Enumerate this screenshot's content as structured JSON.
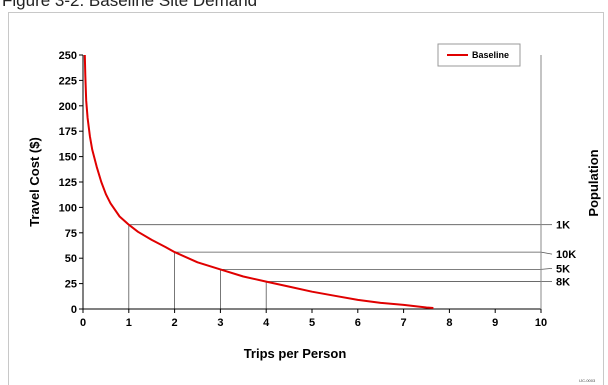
{
  "figure": {
    "caption": "Figure 3-2. Baseline Site Demand",
    "code": "IJC-0003"
  },
  "chart_data": {
    "type": "line",
    "xlabel": "Trips per Person",
    "ylabel": "Travel Cost ($)",
    "y2label": "Population",
    "xlim": [
      0,
      10
    ],
    "ylim": [
      0,
      250
    ],
    "x_ticks": [
      "0",
      "1",
      "2",
      "3",
      "4",
      "5",
      "6",
      "7",
      "8",
      "9",
      "10"
    ],
    "y_ticks": [
      "0",
      "25",
      "50",
      "75",
      "100",
      "125",
      "150",
      "175",
      "200",
      "225",
      "250"
    ],
    "legend_position": "top-right",
    "series": [
      {
        "name": "Baseline",
        "color": "#e00000",
        "x": [
          0.04,
          0.05,
          0.07,
          0.1,
          0.15,
          0.2,
          0.3,
          0.4,
          0.5,
          0.6,
          0.8,
          1.0,
          1.2,
          1.5,
          1.8,
          2.0,
          2.5,
          3.0,
          3.5,
          4.0,
          4.5,
          5.0,
          5.5,
          6.0,
          6.5,
          7.0,
          7.5,
          7.65
        ],
        "y": [
          250,
          230,
          205,
          188,
          170,
          157,
          140,
          125,
          113,
          104,
          91,
          83,
          76,
          68,
          61,
          56,
          46,
          39,
          32,
          27,
          22,
          17,
          13,
          9,
          6,
          4,
          1.5,
          1
        ]
      }
    ],
    "population_levels": [
      {
        "label": "1K",
        "x": 1,
        "y": 83,
        "label_y": 83
      },
      {
        "label": "10K",
        "x": 2,
        "y": 56,
        "label_y": 54
      },
      {
        "label": "5K",
        "x": 3,
        "y": 39,
        "label_y": 40
      },
      {
        "label": "8K",
        "x": 4,
        "y": 27,
        "label_y": 27
      }
    ]
  }
}
